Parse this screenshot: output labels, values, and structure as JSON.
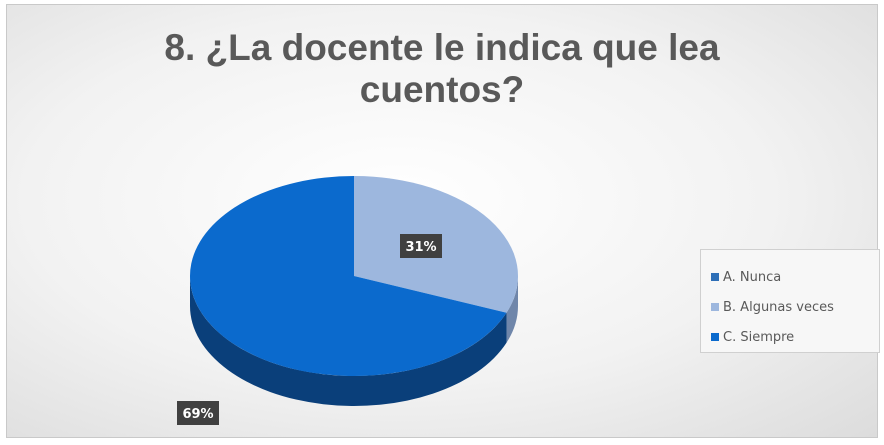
{
  "chart_data": {
    "type": "pie",
    "title_lines": [
      "8. ¿La docente le indica que lea",
      "cuentos?"
    ],
    "categories": [
      "A. Nunca",
      "B. Algunas veces",
      "C. Siempre"
    ],
    "values": [
      0,
      31,
      69
    ],
    "data_labels": [
      "",
      "31%",
      "69%"
    ],
    "colors": [
      "#2E6FB7",
      "#9DB7DE",
      "#0B6ACD"
    ],
    "side_colors": [
      "#1f4e84",
      "#6f86aa",
      "#0a3f7a"
    ],
    "legend_position": "right",
    "style": "3d"
  }
}
